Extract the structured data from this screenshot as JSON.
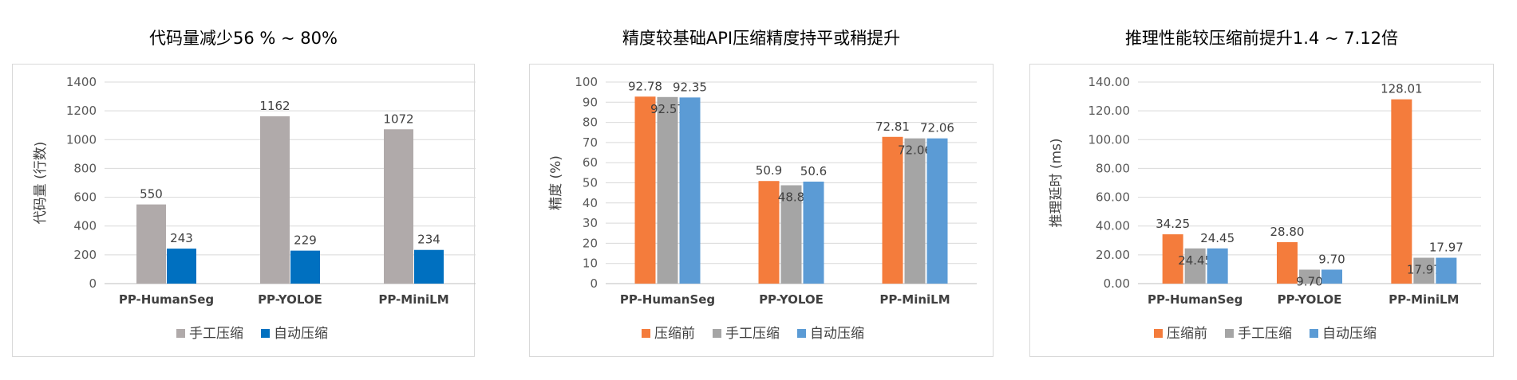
{
  "colors": {
    "pre": "#f47c3c",
    "manual": "#a5a5a5",
    "auto_blue_dark": "#0070c0",
    "auto_blue_light": "#5b9bd5",
    "manual_gray_left": "#b0aaaa"
  },
  "chart_data": [
    {
      "type": "bar",
      "title": "代码量减少56 % ~ 80%",
      "ylabel": "代码量 (行数)",
      "ylim": [
        0,
        1400
      ],
      "yticks": [
        "0",
        "200",
        "400",
        "600",
        "800",
        "1000",
        "1200",
        "1400"
      ],
      "categories": [
        "PP-HumanSeg",
        "PP-YOLOE",
        "PP-MiniLM"
      ],
      "series": [
        {
          "name": "手工压缩",
          "values": [
            550,
            1162,
            1072
          ],
          "labels": [
            "550",
            "1162",
            "1072"
          ],
          "color": "#b0aaaa"
        },
        {
          "name": "自动压缩",
          "values": [
            243,
            229,
            234
          ],
          "labels": [
            "243",
            "229",
            "234"
          ],
          "color": "#0070c0"
        }
      ],
      "legend": "bottom",
      "grid": true
    },
    {
      "type": "bar",
      "title": "精度较基础API压缩精度持平或稍提升",
      "ylabel": "精度 (%)",
      "ylim": [
        0,
        100
      ],
      "yticks": [
        "0",
        "10",
        "20",
        "30",
        "40",
        "50",
        "60",
        "70",
        "80",
        "90",
        "100"
      ],
      "categories": [
        "PP-HumanSeg",
        "PP-YOLOE",
        "PP-MiniLM"
      ],
      "series": [
        {
          "name": "压缩前",
          "values": [
            92.78,
            50.9,
            72.81
          ],
          "labels": [
            "92.78",
            "50.9",
            "72.81"
          ],
          "color": "#f47c3c"
        },
        {
          "name": "手工压缩",
          "values": [
            92.57,
            48.8,
            72.06
          ],
          "labels": [
            "92.57",
            "48.8",
            "72.06"
          ],
          "color": "#a5a5a5"
        },
        {
          "name": "自动压缩",
          "values": [
            92.35,
            50.6,
            72.06
          ],
          "labels": [
            "92.35",
            "50.6",
            "72.06"
          ],
          "color": "#5b9bd5"
        }
      ],
      "legend": "bottom",
      "grid": true
    },
    {
      "type": "bar",
      "title": "推理性能较压缩前提升1.4 ~ 7.12倍",
      "ylabel": "推理延时 (ms)",
      "ylim": [
        0,
        140
      ],
      "yticks": [
        "0.00",
        "20.00",
        "40.00",
        "60.00",
        "80.00",
        "100.00",
        "120.00",
        "140.00"
      ],
      "categories": [
        "PP-HumanSeg",
        "PP-YOLOE",
        "PP-MiniLM"
      ],
      "series": [
        {
          "name": "压缩前",
          "values": [
            34.25,
            28.8,
            128.01
          ],
          "labels": [
            "34.25",
            "28.80",
            "128.01"
          ],
          "color": "#f47c3c"
        },
        {
          "name": "手工压缩",
          "values": [
            24.45,
            9.7,
            17.97
          ],
          "labels": [
            "24.45",
            "9.70",
            "17.97"
          ],
          "color": "#a5a5a5"
        },
        {
          "name": "自动压缩",
          "values": [
            24.45,
            9.7,
            17.97
          ],
          "labels": [
            "24.45",
            "9.70",
            "17.97"
          ],
          "color": "#5b9bd5"
        }
      ],
      "legend": "bottom",
      "grid": true
    }
  ]
}
